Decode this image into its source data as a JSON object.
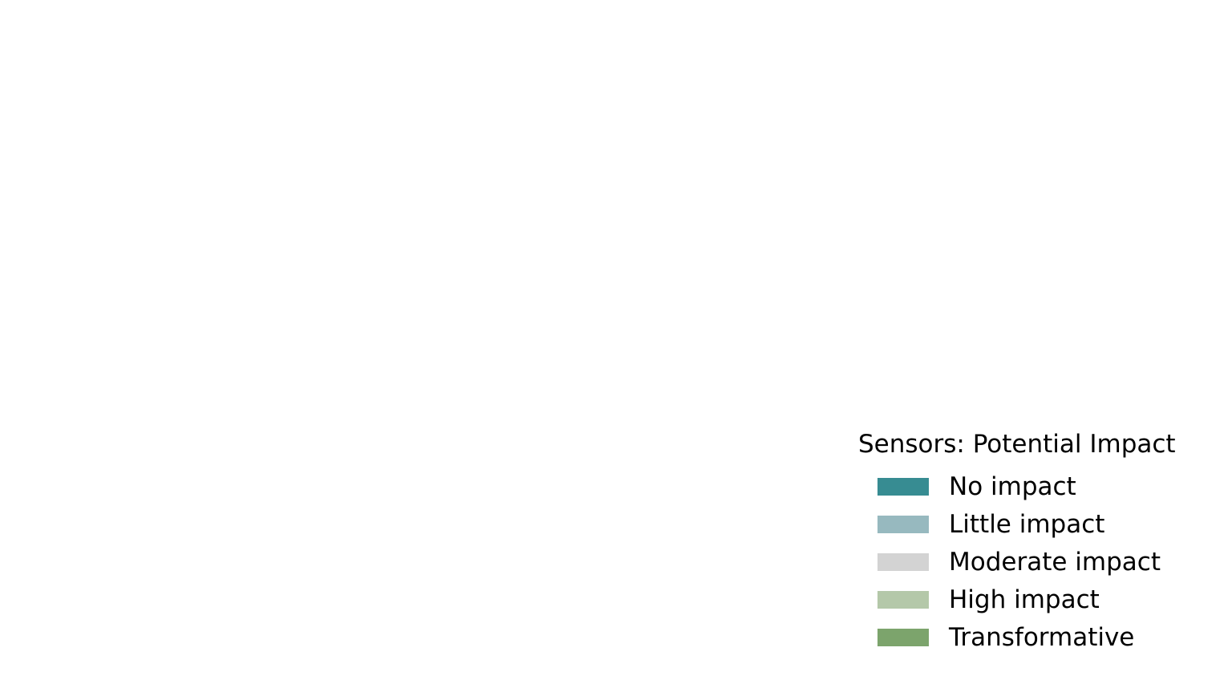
{
  "chart_data": {
    "type": "bar",
    "legend": {
      "title": "Sensors: Potential Impact",
      "placement": "bottom-right",
      "entries": [
        {
          "label": "No impact",
          "color": "#378c92"
        },
        {
          "label": "Little impact",
          "color": "#97b9bf"
        },
        {
          "label": "Moderate impact",
          "color": "#d3d3d3"
        },
        {
          "label": "High impact",
          "color": "#b4c8a9"
        },
        {
          "label": "Transformative",
          "color": "#7ca46c"
        }
      ]
    },
    "grid": false
  }
}
